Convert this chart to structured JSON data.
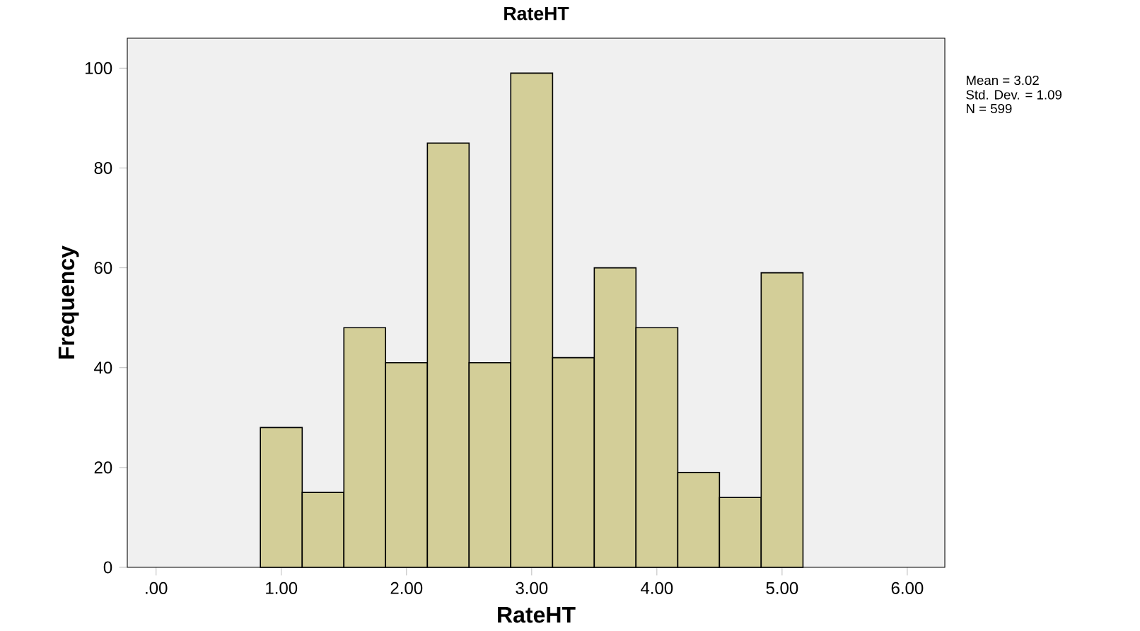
{
  "chart_data": {
    "type": "histogram",
    "title": "RateHT",
    "xlabel": "RateHT",
    "ylabel": "Frequency",
    "bins": [
      0.833,
      1.167,
      1.5,
      1.833,
      2.167,
      2.5,
      2.833,
      3.167,
      3.5,
      3.833,
      4.167,
      4.5,
      4.833,
      5.167
    ],
    "values": [
      28,
      15,
      48,
      41,
      85,
      41,
      99,
      42,
      60,
      48,
      19,
      14,
      59
    ],
    "color": "#d3ce98",
    "xlim": [
      -0.23,
      6.3
    ],
    "ylim": [
      0,
      106
    ],
    "xticks": [
      {
        "value": 0,
        "label": ".00"
      },
      {
        "value": 1,
        "label": "1.00"
      },
      {
        "value": 2,
        "label": "2.00"
      },
      {
        "value": 3,
        "label": "3.00"
      },
      {
        "value": 4,
        "label": "4.00"
      },
      {
        "value": 5,
        "label": "5.00"
      },
      {
        "value": 6,
        "label": "6.00"
      }
    ],
    "yticks": [
      0,
      20,
      40,
      60,
      80,
      100
    ],
    "annotations": [
      "Mean = 3.02",
      "Std. Dev. = 1.09",
      "N = 599"
    ],
    "grid": false
  }
}
